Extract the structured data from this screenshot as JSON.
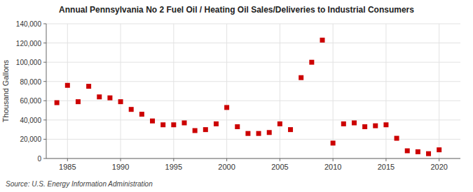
{
  "chart_data": {
    "type": "scatter",
    "title": "Annual Pennsylvania No 2 Fuel Oil / Heating Oil Sales/Deliveries to Industrial Consumers",
    "ylabel": "Thousand Gallons",
    "annotations": [
      "Source: U.S. Energy Information Administration"
    ],
    "color": "#cc0000",
    "marker": "square",
    "grid": true,
    "xlim": [
      1983,
      2022
    ],
    "ylim": [
      0,
      140000
    ],
    "xticks": [
      1985,
      1990,
      1995,
      2000,
      2005,
      2010,
      2015,
      2020
    ],
    "yticks": [
      0,
      {
        "value": 20000,
        "label": "20,000"
      },
      {
        "value": 40000,
        "label": "40,000"
      },
      {
        "value": 60000,
        "label": "60,000"
      },
      {
        "value": 80000,
        "label": "80,000"
      },
      {
        "value": 100000,
        "label": "100,000"
      },
      {
        "value": 120000,
        "label": "120,000"
      },
      {
        "value": 140000,
        "label": "140,000"
      }
    ],
    "x": [
      1984,
      1985,
      1986,
      1987,
      1988,
      1989,
      1990,
      1991,
      1992,
      1993,
      1994,
      1995,
      1996,
      1997,
      1998,
      1999,
      2000,
      2001,
      2002,
      2003,
      2004,
      2005,
      2006,
      2007,
      2008,
      2009,
      2010,
      2011,
      2012,
      2013,
      2014,
      2015,
      2016,
      2017,
      2018,
      2019,
      2020
    ],
    "values": [
      58000,
      76000,
      59000,
      75000,
      64000,
      63000,
      59000,
      51000,
      46000,
      39000,
      35000,
      35000,
      37000,
      29000,
      30000,
      36000,
      53000,
      33000,
      26000,
      26000,
      27000,
      36000,
      30000,
      84000,
      100000,
      123000,
      16000,
      36000,
      37000,
      33000,
      34000,
      35000,
      21000,
      8000,
      7000,
      5000,
      9000
    ]
  }
}
